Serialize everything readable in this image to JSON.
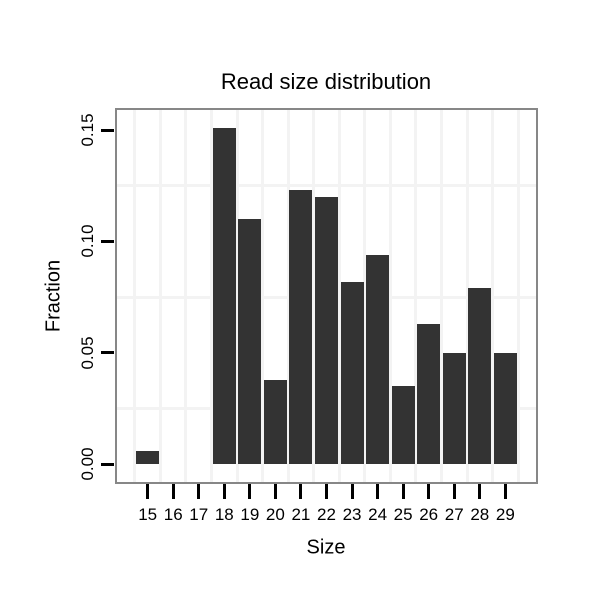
{
  "figure": {
    "title": "Read size distribution",
    "x_axis": {
      "label": "Size",
      "tick_labels": [
        "15",
        "16",
        "17",
        "18",
        "19",
        "20",
        "21",
        "22",
        "23",
        "24",
        "25",
        "26",
        "27",
        "28",
        "29"
      ]
    },
    "y_axis": {
      "label": "Fraction",
      "tick_labels": [
        "0.00",
        "0.05",
        "0.10",
        "0.15"
      ],
      "tick_values": [
        0,
        0.05,
        0.1,
        0.15
      ]
    }
  },
  "chart_data": {
    "type": "bar",
    "title": "Read size distribution",
    "xlabel": "Size",
    "ylabel": "Fraction",
    "categories": [
      15,
      16,
      17,
      18,
      19,
      20,
      21,
      22,
      23,
      24,
      25,
      26,
      27,
      28,
      29
    ],
    "values": [
      0.006,
      0,
      0,
      0.151,
      0.11,
      0.038,
      0.123,
      0.12,
      0.082,
      0.094,
      0.035,
      0.063,
      0.05,
      0.079,
      0.05
    ],
    "xlim": [
      13.8,
      30.2
    ],
    "ylim": [
      -0.008,
      0.159
    ],
    "y_major_ticks": [
      0,
      0.05,
      0.1,
      0.15
    ],
    "y_major_tick_labels": [
      "0.00",
      "0.05",
      "0.10",
      "0.15"
    ],
    "y_minor_gridlines": [
      0.025,
      0.075,
      0.125
    ],
    "x_minor_gridlines": [
      14.5,
      15.5,
      16.5,
      17.5,
      18.5,
      19.5,
      20.5,
      21.5,
      22.5,
      23.5,
      24.5,
      25.5,
      26.5,
      27.5,
      28.5,
      29.5
    ],
    "bar_width_fraction": 0.9,
    "bar_color": "#333333",
    "panel_border_color": "#878787",
    "gridline_color": "#f3f3f3",
    "tick_color": "#000000",
    "text_color": "#000000",
    "background_color": "#ffffff",
    "grid": "minor-only",
    "legend": false
  }
}
